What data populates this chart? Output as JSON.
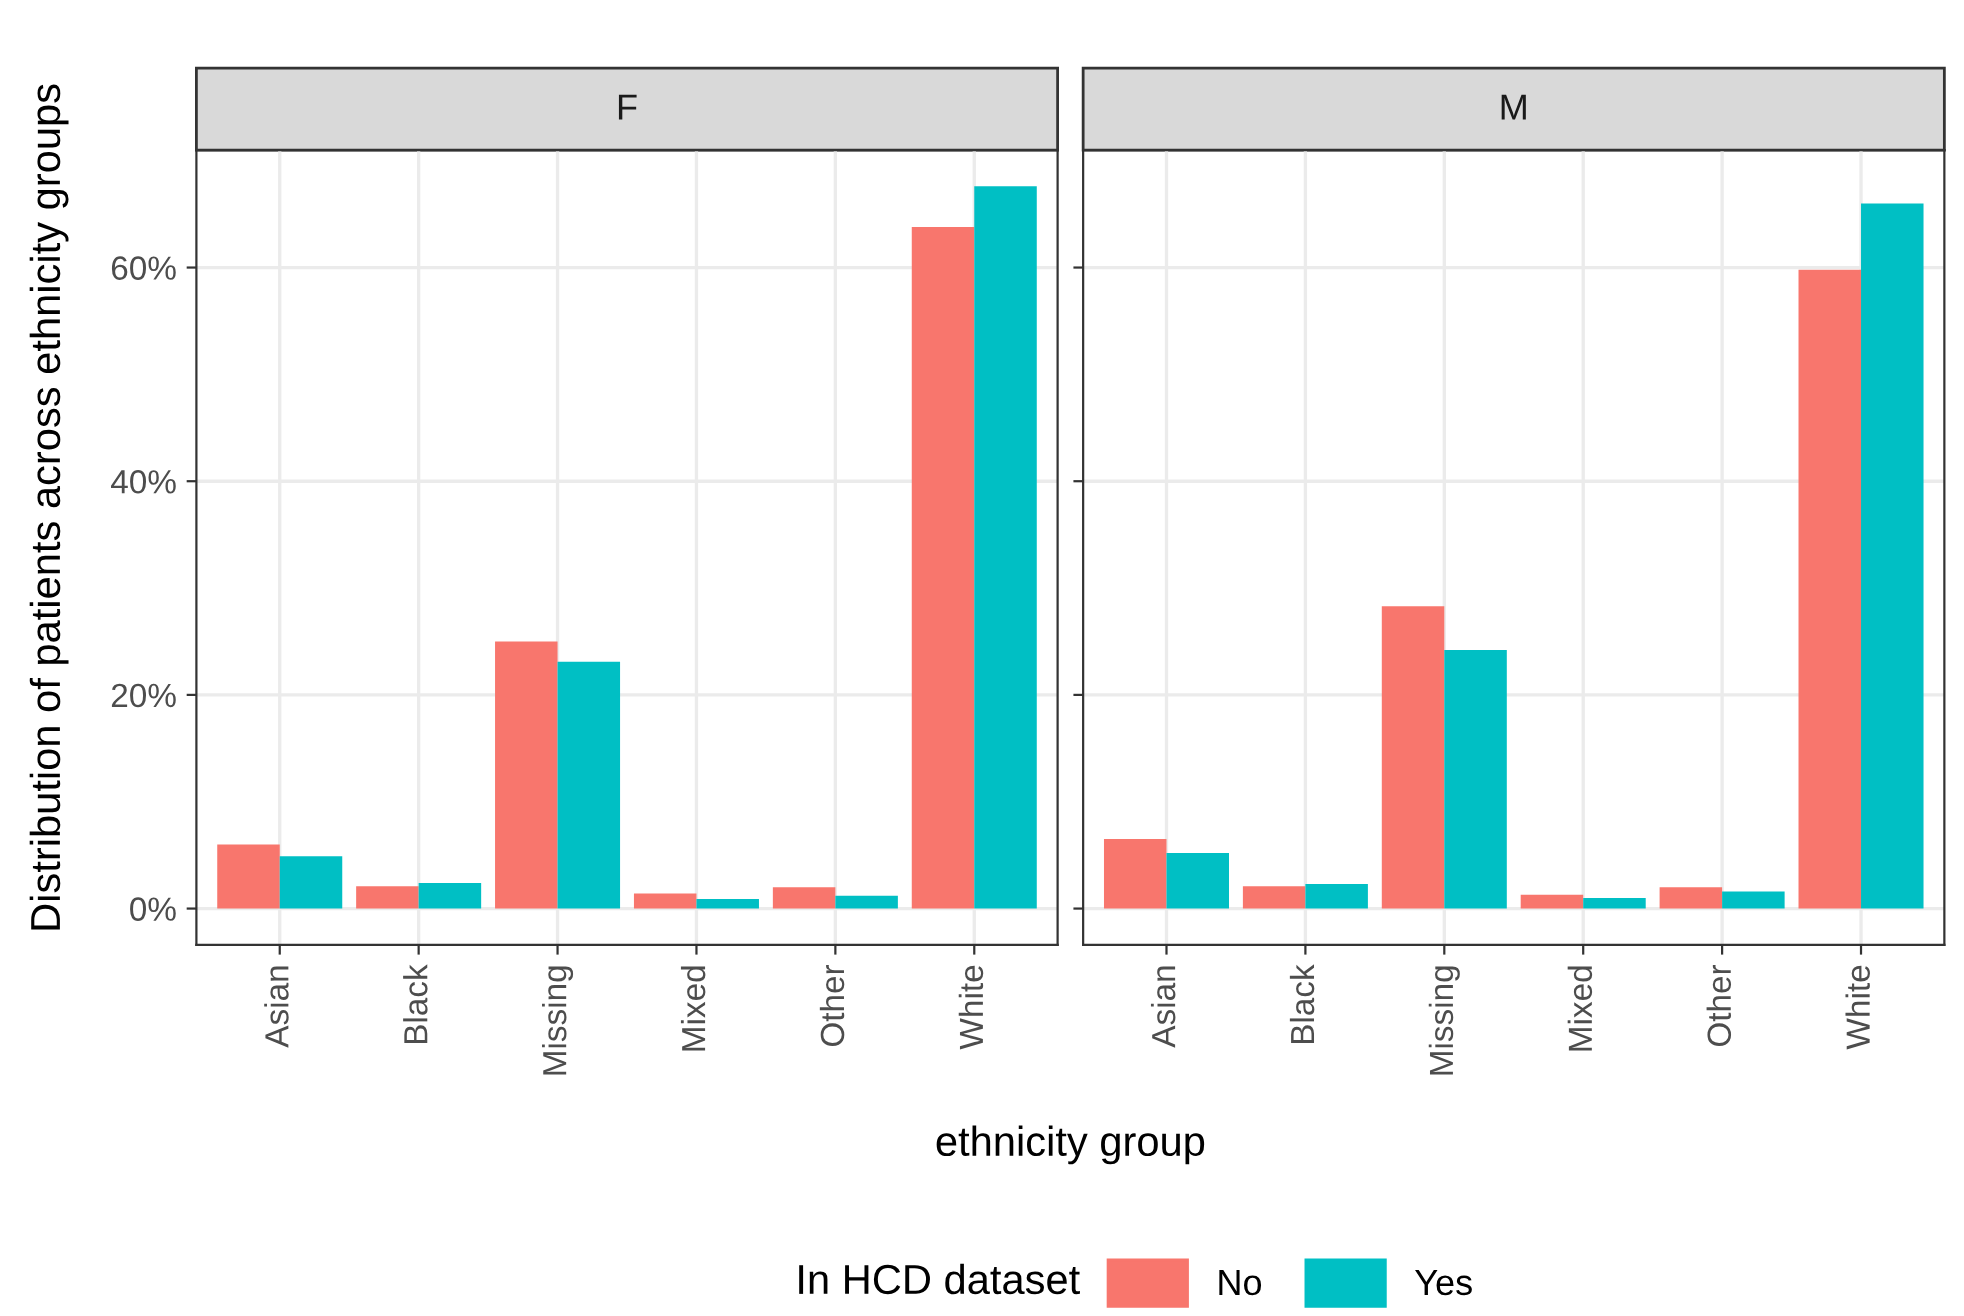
{
  "chart_data": [
    {
      "type": "bar",
      "title": "F",
      "xlabel": "ethnicity group",
      "ylabel": "Distribution of patients across ethnicity groups",
      "legend_title": "In HCD dataset",
      "legend": "bottom",
      "grid": true,
      "categories": [
        "Asian",
        "Black",
        "Missing",
        "Mixed",
        "Other",
        "White"
      ],
      "series": [
        {
          "name": "No",
          "color": "#f8766d",
          "values": [
            6.0,
            2.1,
            25.0,
            1.4,
            2.0,
            63.8
          ]
        },
        {
          "name": "Yes",
          "color": "#00bfc4",
          "values": [
            4.9,
            2.4,
            23.1,
            0.9,
            1.2,
            67.6
          ]
        }
      ],
      "ylim": [
        -3.4,
        71.0
      ],
      "yticks": [
        {
          "value": 0,
          "label": "0%"
        },
        {
          "value": 20,
          "label": "20%"
        },
        {
          "value": 40,
          "label": "40%"
        },
        {
          "value": 60,
          "label": "60%"
        }
      ]
    },
    {
      "type": "bar",
      "title": "M",
      "grid": true,
      "tick_labels": "x",
      "categories": [
        "Asian",
        "Black",
        "Missing",
        "Mixed",
        "Other",
        "White"
      ],
      "series": [
        {
          "color": "#f8766d",
          "values": [
            6.5,
            2.1,
            28.3,
            1.3,
            2.0,
            59.8
          ]
        },
        {
          "color": "#00bfc4",
          "values": [
            5.2,
            2.3,
            24.2,
            1.0,
            1.6,
            66.0
          ]
        }
      ],
      "ylim": [
        -3.4,
        71.0
      ],
      "yticks": [
        {
          "value": 0,
          "label": null
        },
        {
          "value": 20,
          "label": null
        },
        {
          "value": 40,
          "label": null
        },
        {
          "value": 60,
          "label": null
        }
      ]
    }
  ]
}
